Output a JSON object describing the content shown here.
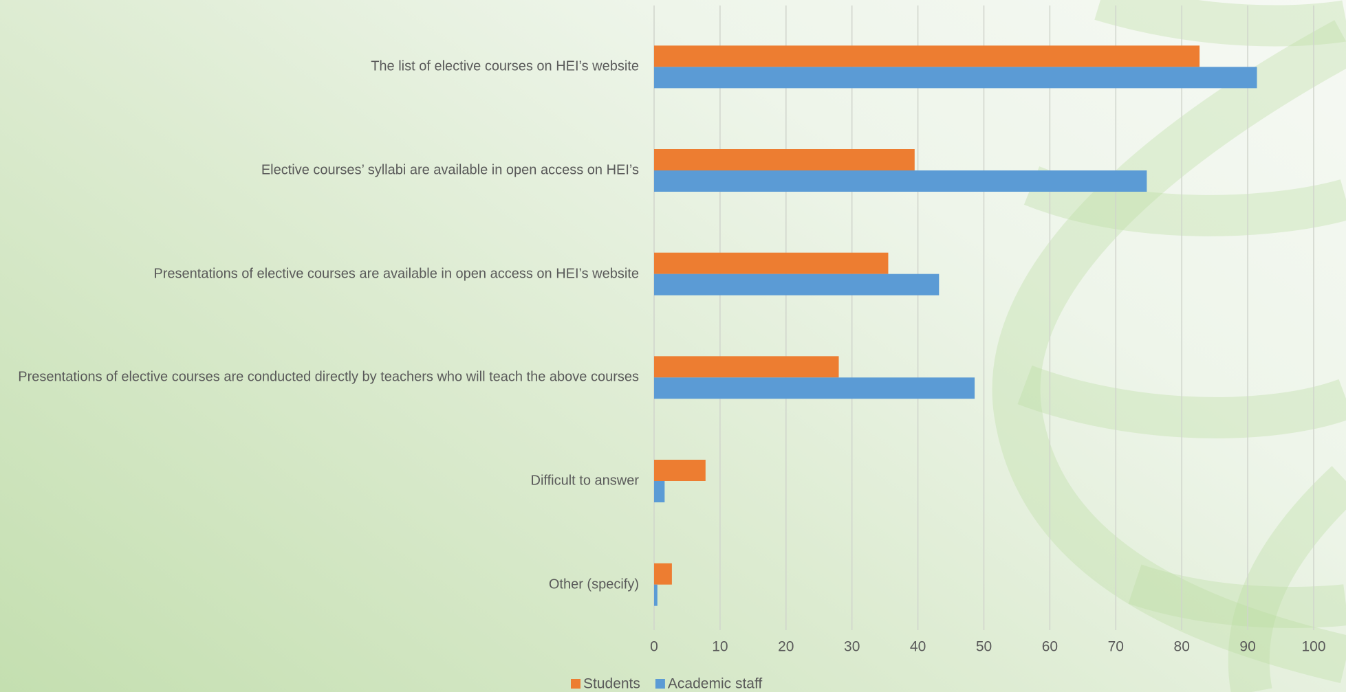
{
  "chart_data": {
    "type": "barh",
    "categories": [
      "The list of elective courses on HEI’s website",
      "Elective courses’ syllabi are available in open access on HEI’s",
      "Presentations of elective courses are available in open access on HEI’s website",
      "Presentations of elective courses are conducted directly by teachers who will teach the above courses",
      "Difficult to answer",
      "Other (specify)"
    ],
    "series": [
      {
        "name": "Students",
        "color": "#ed7d31",
        "values": [
          82.7,
          39.5,
          35.5,
          28,
          7.8,
          2.7
        ]
      },
      {
        "name": "Academic staff",
        "color": "#5b9bd5",
        "values": [
          91.4,
          74.7,
          43.2,
          48.6,
          1.6,
          0.5
        ]
      }
    ],
    "xlim": [
      0,
      100
    ],
    "xticks": [
      0,
      10,
      20,
      30,
      40,
      50,
      60,
      70,
      80,
      90,
      100
    ],
    "grid": true,
    "legend": "bottom"
  }
}
